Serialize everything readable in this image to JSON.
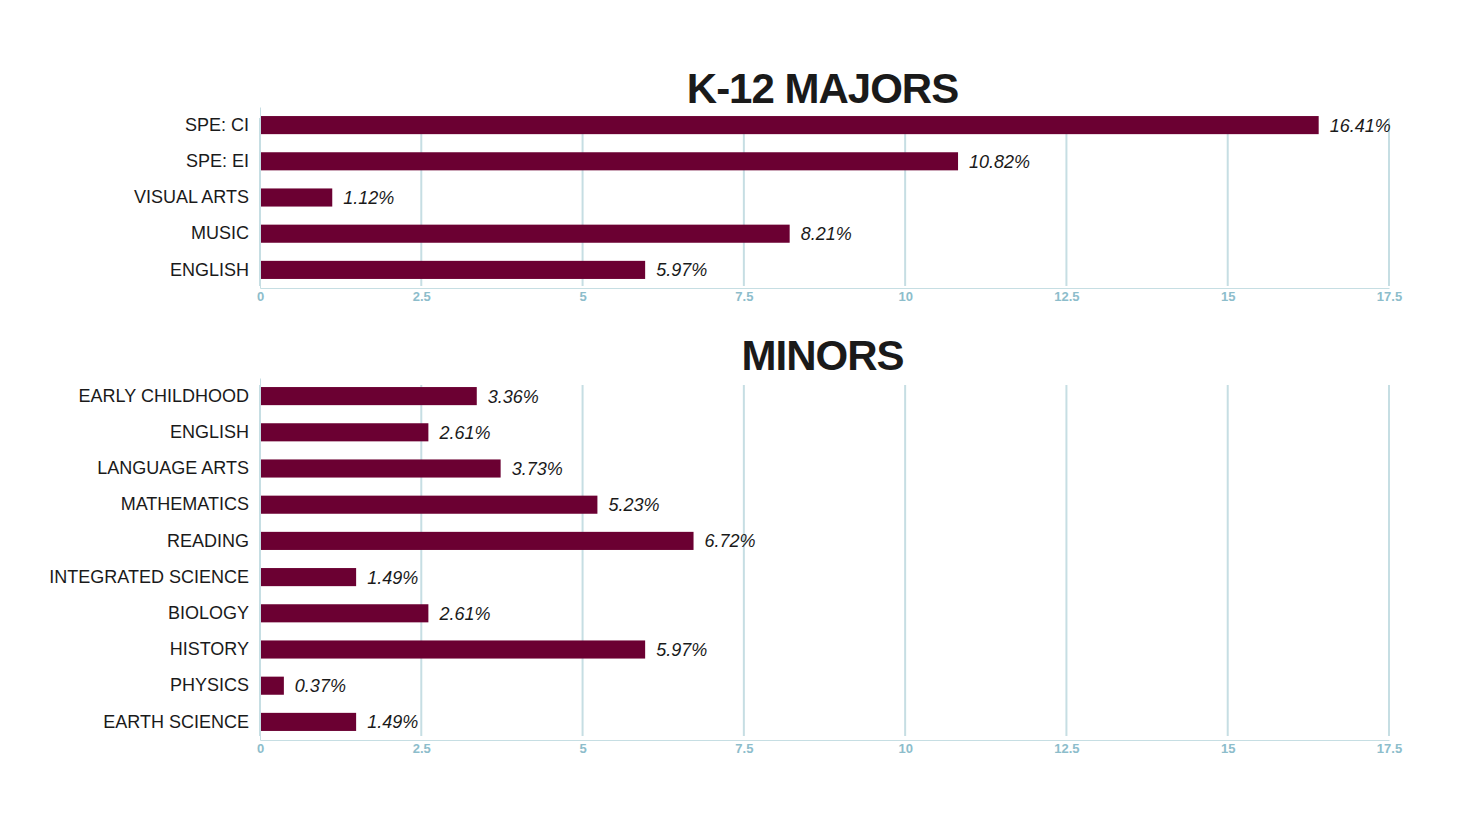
{
  "chart_data": [
    {
      "type": "bar",
      "title": "K-12 MAJORS",
      "orientation": "horizontal",
      "categories": [
        "SPE: CI",
        "SPE: EI",
        "VISUAL ARTS",
        "MUSIC",
        "ENGLISH"
      ],
      "values": [
        16.41,
        10.82,
        1.12,
        8.21,
        5.97
      ],
      "value_labels": [
        "16.41%",
        "10.82%",
        "1.12%",
        "8.21%",
        "5.97%"
      ],
      "color": "#6b0032",
      "xlim": [
        0,
        17.5
      ],
      "xticks": [
        0,
        2.5,
        5,
        7.5,
        10,
        12.5,
        15,
        17.5
      ],
      "grid": true,
      "data_labels": true
    },
    {
      "type": "bar",
      "title": "MINORS",
      "orientation": "horizontal",
      "categories": [
        "EARLY CHILDHOOD",
        "ENGLISH",
        "LANGUAGE ARTS",
        "MATHEMATICS",
        "READING",
        "INTEGRATED SCIENCE",
        "BIOLOGY",
        "HISTORY",
        "PHYSICS",
        "EARTH SCIENCE"
      ],
      "values": [
        3.36,
        2.61,
        3.73,
        5.23,
        6.72,
        1.49,
        2.61,
        5.97,
        0.37,
        1.49
      ],
      "value_labels": [
        "3.36%",
        "2.61%",
        "3.73%",
        "5.23%",
        "6.72%",
        "1.49%",
        "2.61%",
        "5.97%",
        "0.37%",
        "1.49%"
      ],
      "color": "#6b0032",
      "xlim": [
        0,
        17.5
      ],
      "xticks": [
        0,
        2.5,
        5,
        7.5,
        10,
        12.5,
        15,
        17.5
      ],
      "grid": true,
      "data_labels": true
    }
  ]
}
